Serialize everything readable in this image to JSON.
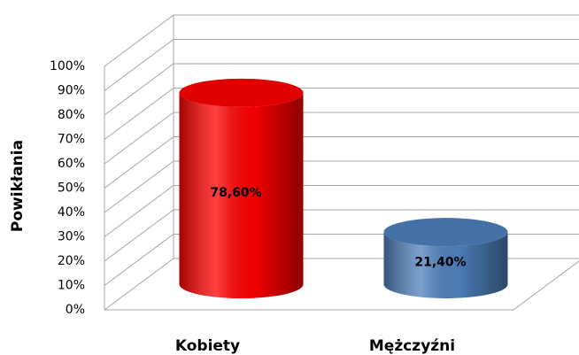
{
  "chart_data": {
    "type": "bar",
    "y_label": "Powikłania",
    "categories": [
      "Kobiety",
      "Mężczyźni"
    ],
    "values": [
      78.6,
      21.4
    ],
    "value_labels": [
      "78,60%",
      "21,40%"
    ],
    "colors": [
      "#ff0000",
      "#4f81bd"
    ],
    "ylim": [
      0,
      100
    ],
    "yticks": [
      {
        "value": 0,
        "label": "0%"
      },
      {
        "value": 10,
        "label": "10%"
      },
      {
        "value": 20,
        "label": "20%"
      },
      {
        "value": 30,
        "label": "30%"
      },
      {
        "value": 40,
        "label": "40%"
      },
      {
        "value": 50,
        "label": "50%"
      },
      {
        "value": 60,
        "label": "60%"
      },
      {
        "value": 70,
        "label": "70%"
      },
      {
        "value": 80,
        "label": "80%"
      },
      {
        "value": 90,
        "label": "90%"
      },
      {
        "value": 100,
        "label": "100%"
      }
    ],
    "grid": true
  }
}
